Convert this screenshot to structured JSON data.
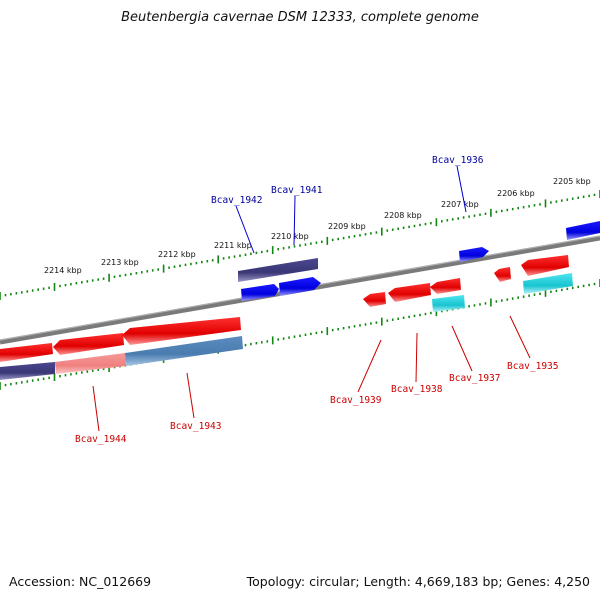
{
  "title": "Beutenbergia cavernae DSM 12333, complete genome",
  "footer": {
    "accession": "Accession: NC_012669",
    "topology": "Topology: circular; Length: 4,669,183 bp; Genes: 4,250"
  },
  "colors": {
    "forward_gene": "#0000ee",
    "reverse_gene": "#ee0000",
    "forward_label": "#000099",
    "reverse_label": "#cc0000",
    "cds_purple": "#3d3a7c",
    "cds_blue": "#4a7cb0",
    "cds_cyan": "#18c4d0",
    "cds_pink": "#f08a8a",
    "backbone": "#808080",
    "tick": "#118811"
  },
  "scale_labels": [
    "2214 kbp",
    "2213 kbp",
    "2212 kbp",
    "2211 kbp",
    "2210 kbp",
    "2209 kbp",
    "2208 kbp",
    "2207 kbp",
    "2206 kbp",
    "2205 kbp"
  ],
  "gene_labels": {
    "forward": [
      "Bcav_1942",
      "Bcav_1941",
      "Bcav_1936"
    ],
    "reverse": [
      "Bcav_1944",
      "Bcav_1943",
      "Bcav_1939",
      "Bcav_1938",
      "Bcav_1937",
      "Bcav_1935"
    ]
  }
}
